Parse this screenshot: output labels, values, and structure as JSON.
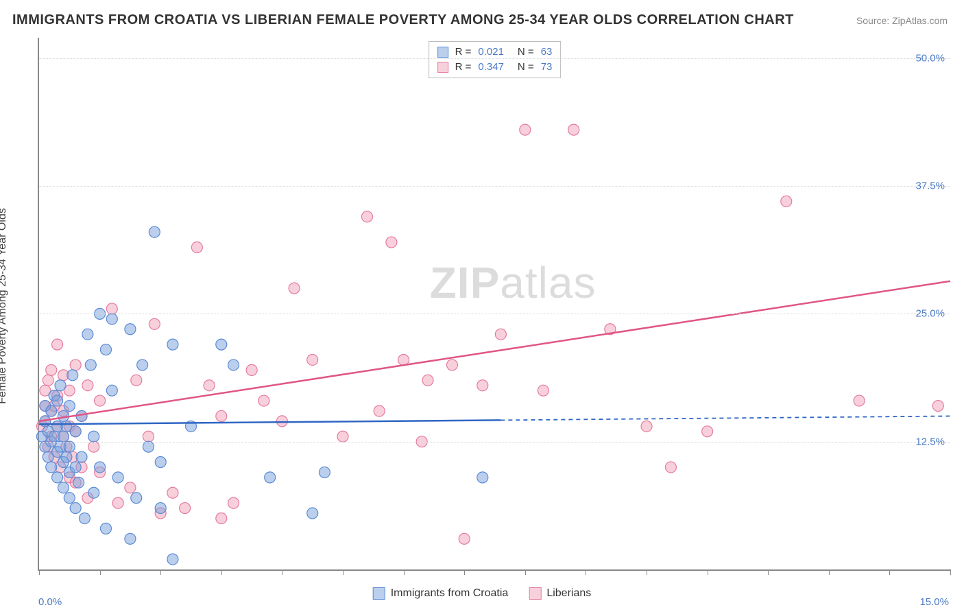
{
  "title": "IMMIGRANTS FROM CROATIA VS LIBERIAN FEMALE POVERTY AMONG 25-34 YEAR OLDS CORRELATION CHART",
  "source_label": "Source:",
  "source_value": "ZipAtlas.com",
  "ylabel": "Female Poverty Among 25-34 Year Olds",
  "watermark": {
    "bold": "ZIP",
    "thin": "atlas"
  },
  "xlim": [
    0,
    15
  ],
  "ylim": [
    0,
    52
  ],
  "x_ticks": [
    0,
    1,
    2,
    3,
    4,
    5,
    6,
    7,
    8,
    9,
    10,
    11,
    12,
    13,
    14,
    15
  ],
  "x_tick_labels": {
    "0": "0.0%",
    "15": "15.0%"
  },
  "y_gridlines": [
    12.5,
    25.0,
    37.5,
    50.0
  ],
  "y_tick_labels": {
    "12.5": "12.5%",
    "25.0": "25.0%",
    "37.5": "37.5%",
    "50.0": "50.0%"
  },
  "colors": {
    "blue_fill": "rgba(120,160,220,0.5)",
    "blue_stroke": "#5a8bd6",
    "pink_fill": "rgba(240,150,175,0.45)",
    "pink_stroke": "#e57ba0",
    "blue_line": "#2f66c4",
    "pink_line": "#e05586",
    "axis": "#888888",
    "grid": "#dddddd",
    "tick_text": "#4a7ac7",
    "title_text": "#333333",
    "watermark_text": "#dcdcdc"
  },
  "marker_radius": 8,
  "line_width": 2.5,
  "legend_top": {
    "rows": [
      {
        "swatch": "blue",
        "r_label": "R =",
        "r_value": "0.021",
        "n_label": "N =",
        "n_value": "63"
      },
      {
        "swatch": "pink",
        "r_label": "R =",
        "r_value": "0.347",
        "n_label": "N =",
        "n_value": "73"
      }
    ]
  },
  "legend_bottom": {
    "items": [
      {
        "swatch": "blue",
        "label": "Immigrants from Croatia"
      },
      {
        "swatch": "pink",
        "label": "Liberians"
      }
    ]
  },
  "trend_lines": {
    "blue": {
      "x0": 0,
      "y0": 14.2,
      "x1": 7.6,
      "y1": 14.6,
      "dash_x1": 15,
      "dash_y1": 15.0
    },
    "pink": {
      "x0": 0,
      "y0": 14.5,
      "x1": 15,
      "y1": 28.2
    }
  },
  "series_blue": [
    [
      0.05,
      13.0
    ],
    [
      0.1,
      12.0
    ],
    [
      0.1,
      14.5
    ],
    [
      0.1,
      16.0
    ],
    [
      0.15,
      11.0
    ],
    [
      0.15,
      13.5
    ],
    [
      0.2,
      10.0
    ],
    [
      0.2,
      12.5
    ],
    [
      0.2,
      15.5
    ],
    [
      0.25,
      13.0
    ],
    [
      0.25,
      17.0
    ],
    [
      0.3,
      9.0
    ],
    [
      0.3,
      11.5
    ],
    [
      0.3,
      14.0
    ],
    [
      0.3,
      16.5
    ],
    [
      0.35,
      12.0
    ],
    [
      0.35,
      18.0
    ],
    [
      0.4,
      8.0
    ],
    [
      0.4,
      10.5
    ],
    [
      0.4,
      13.0
    ],
    [
      0.4,
      15.0
    ],
    [
      0.45,
      11.0
    ],
    [
      0.45,
      14.0
    ],
    [
      0.5,
      7.0
    ],
    [
      0.5,
      9.5
    ],
    [
      0.5,
      12.0
    ],
    [
      0.5,
      16.0
    ],
    [
      0.55,
      19.0
    ],
    [
      0.6,
      6.0
    ],
    [
      0.6,
      10.0
    ],
    [
      0.6,
      13.5
    ],
    [
      0.65,
      8.5
    ],
    [
      0.7,
      11.0
    ],
    [
      0.7,
      15.0
    ],
    [
      0.75,
      5.0
    ],
    [
      0.8,
      23.0
    ],
    [
      0.85,
      20.0
    ],
    [
      0.9,
      7.5
    ],
    [
      0.9,
      13.0
    ],
    [
      1.0,
      25.0
    ],
    [
      1.0,
      10.0
    ],
    [
      1.1,
      21.5
    ],
    [
      1.1,
      4.0
    ],
    [
      1.2,
      17.5
    ],
    [
      1.2,
      24.5
    ],
    [
      1.3,
      9.0
    ],
    [
      1.5,
      23.5
    ],
    [
      1.5,
      3.0
    ],
    [
      1.6,
      7.0
    ],
    [
      1.7,
      20.0
    ],
    [
      1.8,
      12.0
    ],
    [
      1.9,
      33.0
    ],
    [
      2.0,
      6.0
    ],
    [
      2.0,
      10.5
    ],
    [
      2.2,
      22.0
    ],
    [
      2.2,
      1.0
    ],
    [
      2.5,
      14.0
    ],
    [
      3.0,
      22.0
    ],
    [
      3.2,
      20.0
    ],
    [
      3.8,
      9.0
    ],
    [
      4.5,
      5.5
    ],
    [
      4.7,
      9.5
    ],
    [
      7.3,
      9.0
    ]
  ],
  "series_pink": [
    [
      0.05,
      14.0
    ],
    [
      0.1,
      17.5
    ],
    [
      0.1,
      14.5
    ],
    [
      0.1,
      16.0
    ],
    [
      0.15,
      12.0
    ],
    [
      0.15,
      18.5
    ],
    [
      0.2,
      13.0
    ],
    [
      0.2,
      15.5
    ],
    [
      0.2,
      19.5
    ],
    [
      0.25,
      11.0
    ],
    [
      0.25,
      16.0
    ],
    [
      0.3,
      14.0
    ],
    [
      0.3,
      17.0
    ],
    [
      0.3,
      22.0
    ],
    [
      0.35,
      10.0
    ],
    [
      0.4,
      13.0
    ],
    [
      0.4,
      15.5
    ],
    [
      0.4,
      19.0
    ],
    [
      0.45,
      12.0
    ],
    [
      0.5,
      9.0
    ],
    [
      0.5,
      14.0
    ],
    [
      0.5,
      17.5
    ],
    [
      0.55,
      11.0
    ],
    [
      0.6,
      8.5
    ],
    [
      0.6,
      13.5
    ],
    [
      0.6,
      20.0
    ],
    [
      0.7,
      10.0
    ],
    [
      0.7,
      15.0
    ],
    [
      0.8,
      7.0
    ],
    [
      0.8,
      18.0
    ],
    [
      0.9,
      12.0
    ],
    [
      1.0,
      9.5
    ],
    [
      1.0,
      16.5
    ],
    [
      1.2,
      25.5
    ],
    [
      1.3,
      6.5
    ],
    [
      1.5,
      8.0
    ],
    [
      1.6,
      18.5
    ],
    [
      1.8,
      13.0
    ],
    [
      1.9,
      24.0
    ],
    [
      2.0,
      5.5
    ],
    [
      2.2,
      7.5
    ],
    [
      2.4,
      6.0
    ],
    [
      2.6,
      31.5
    ],
    [
      2.8,
      18.0
    ],
    [
      3.0,
      5.0
    ],
    [
      3.0,
      15.0
    ],
    [
      3.2,
      6.5
    ],
    [
      3.5,
      19.5
    ],
    [
      3.7,
      16.5
    ],
    [
      4.0,
      14.5
    ],
    [
      4.2,
      27.5
    ],
    [
      4.5,
      20.5
    ],
    [
      5.0,
      13.0
    ],
    [
      5.4,
      34.5
    ],
    [
      5.6,
      15.5
    ],
    [
      5.8,
      32.0
    ],
    [
      6.0,
      20.5
    ],
    [
      6.3,
      12.5
    ],
    [
      6.4,
      18.5
    ],
    [
      6.8,
      20.0
    ],
    [
      7.3,
      18.0
    ],
    [
      7.6,
      23.0
    ],
    [
      8.0,
      43.0
    ],
    [
      8.3,
      17.5
    ],
    [
      8.8,
      43.0
    ],
    [
      9.4,
      23.5
    ],
    [
      10.0,
      14.0
    ],
    [
      10.4,
      10.0
    ],
    [
      11.0,
      13.5
    ],
    [
      12.3,
      36.0
    ],
    [
      13.5,
      16.5
    ],
    [
      14.8,
      16.0
    ],
    [
      7.0,
      3.0
    ]
  ]
}
